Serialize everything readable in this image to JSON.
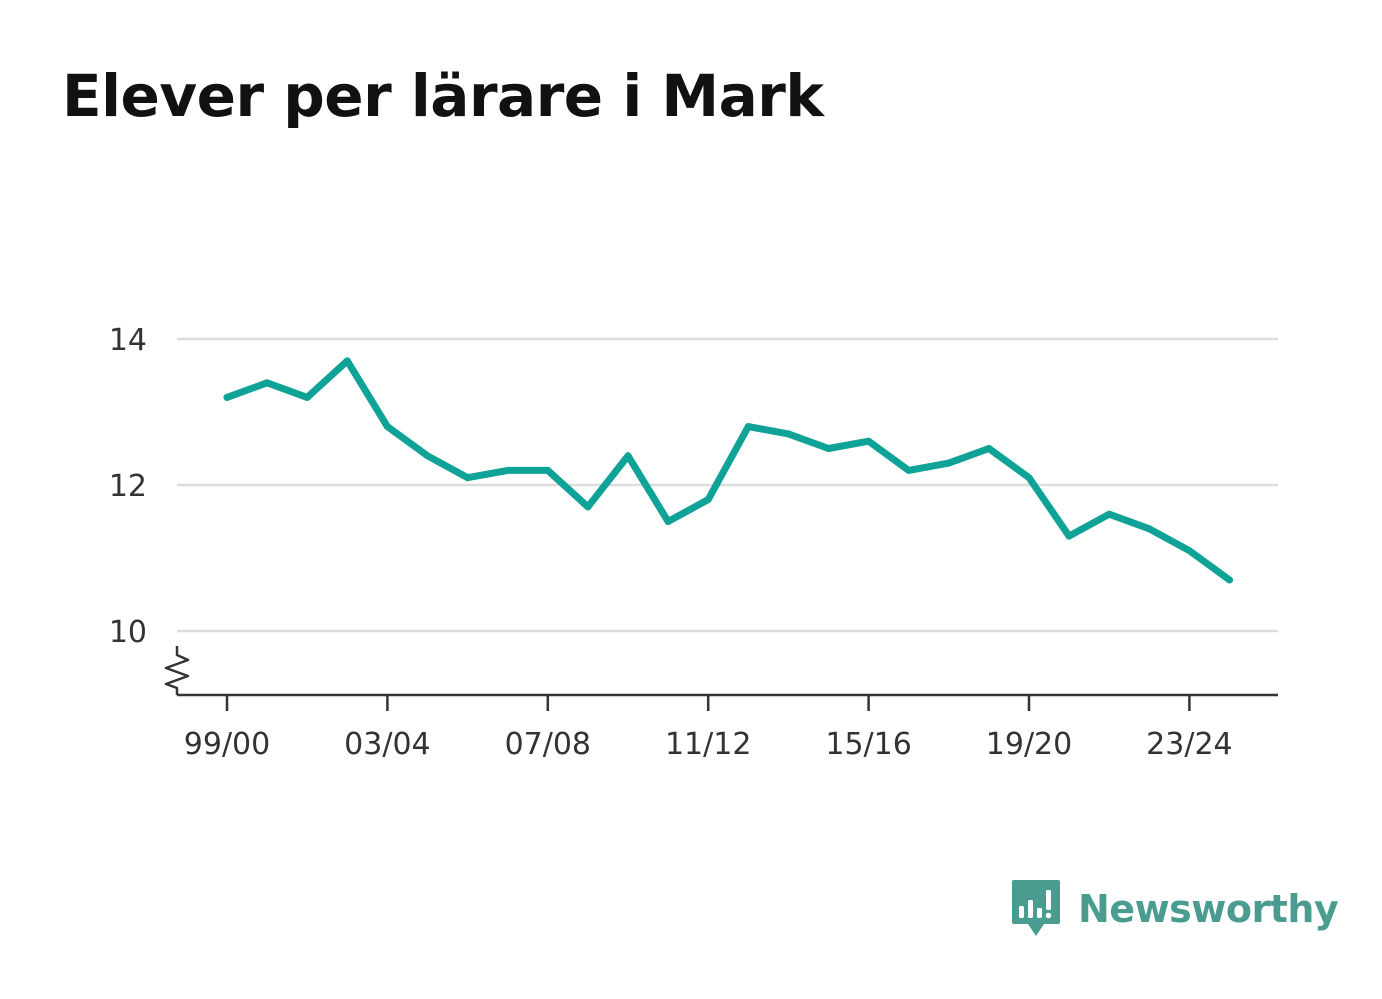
{
  "chart_data": {
    "type": "line",
    "title": "Elever per lärare i Mark",
    "xlabel": "",
    "ylabel": "",
    "categories": [
      "99/00",
      "00/01",
      "01/02",
      "02/03",
      "03/04",
      "04/05",
      "05/06",
      "06/07",
      "07/08",
      "08/09",
      "09/10",
      "10/11",
      "11/12",
      "12/13",
      "13/14",
      "14/15",
      "15/16",
      "16/17",
      "17/18",
      "18/19",
      "19/20",
      "20/21",
      "21/22",
      "22/23",
      "23/24",
      "24/25"
    ],
    "x_tick_labels": [
      "99/00",
      "03/04",
      "07/08",
      "11/12",
      "15/16",
      "19/20",
      "23/24"
    ],
    "y_ticks": [
      10,
      12,
      14
    ],
    "ylim": [
      9.1,
      14.4
    ],
    "y_axis_break": true,
    "grid": true,
    "series": [
      {
        "values": [
          13.2,
          13.4,
          13.2,
          13.7,
          12.8,
          12.4,
          12.1,
          12.2,
          12.2,
          11.7,
          12.4,
          11.5,
          11.8,
          12.8,
          12.7,
          12.5,
          12.6,
          12.2,
          12.3,
          12.5,
          12.1,
          11.3,
          11.6,
          11.4,
          11.1,
          10.7
        ],
        "color": "#0fa297"
      }
    ]
  },
  "brand": {
    "name": "Newsworthy",
    "color": "#4a9c90",
    "icon": "bar-chart-bubble-icon"
  }
}
